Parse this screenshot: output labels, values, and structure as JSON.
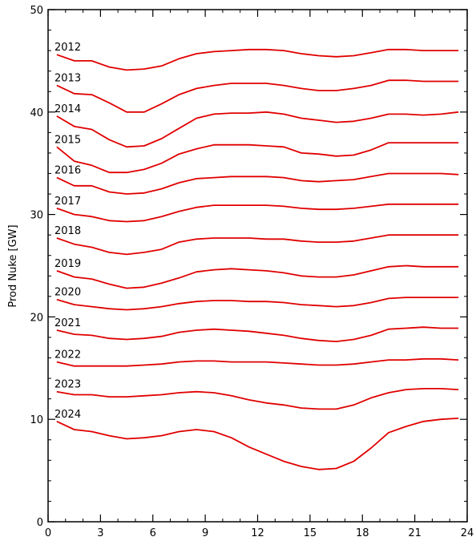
{
  "chart_data": {
    "type": "line",
    "title": "",
    "xlabel": "",
    "ylabel": "Prod Nuke [GW]",
    "xlim": [
      0,
      24
    ],
    "ylim": [
      0,
      50
    ],
    "xticks": [
      0,
      3,
      6,
      9,
      12,
      15,
      18,
      21,
      24
    ],
    "yticks": [
      0,
      10,
      20,
      30,
      40,
      50
    ],
    "grid": false,
    "line_color": "#e00000",
    "x": [
      0.5,
      1.5,
      2.5,
      3.5,
      4.5,
      5.5,
      6.5,
      7.5,
      8.5,
      9.5,
      10.5,
      11.5,
      12.5,
      13.5,
      14.5,
      15.5,
      16.5,
      17.5,
      18.5,
      19.5,
      20.5,
      21.5,
      22.5,
      23.5
    ],
    "series": [
      {
        "name": "2012",
        "values": [
          45.6,
          45.0,
          45.0,
          44.4,
          44.1,
          44.2,
          44.5,
          45.2,
          45.7,
          45.9,
          46.0,
          46.1,
          46.1,
          46.0,
          45.7,
          45.5,
          45.4,
          45.5,
          45.8,
          46.1,
          46.1,
          46.0,
          46.0,
          46.0
        ]
      },
      {
        "name": "2013",
        "values": [
          42.6,
          41.8,
          41.7,
          40.9,
          40.0,
          40.0,
          40.8,
          41.7,
          42.3,
          42.6,
          42.8,
          42.8,
          42.8,
          42.6,
          42.3,
          42.1,
          42.1,
          42.3,
          42.6,
          43.1,
          43.1,
          43.0,
          43.0,
          43.0
        ]
      },
      {
        "name": "2014",
        "values": [
          39.6,
          38.6,
          38.3,
          37.3,
          36.6,
          36.7,
          37.4,
          38.4,
          39.4,
          39.8,
          39.9,
          39.9,
          40.0,
          39.8,
          39.4,
          39.2,
          39.0,
          39.1,
          39.4,
          39.8,
          39.8,
          39.7,
          39.8,
          40.0
        ]
      },
      {
        "name": "2015",
        "values": [
          36.6,
          35.2,
          34.8,
          34.1,
          34.1,
          34.4,
          35.0,
          35.9,
          36.4,
          36.8,
          36.8,
          36.8,
          36.7,
          36.6,
          36.0,
          35.9,
          35.7,
          35.8,
          36.3,
          37.0,
          37.0,
          37.0,
          37.0,
          37.0
        ]
      },
      {
        "name": "2016",
        "values": [
          33.6,
          32.8,
          32.8,
          32.2,
          32.0,
          32.1,
          32.5,
          33.1,
          33.5,
          33.6,
          33.7,
          33.7,
          33.7,
          33.6,
          33.3,
          33.2,
          33.3,
          33.4,
          33.7,
          34.0,
          34.0,
          34.0,
          34.0,
          33.9
        ]
      },
      {
        "name": "2017",
        "values": [
          30.6,
          30.0,
          29.8,
          29.4,
          29.3,
          29.4,
          29.8,
          30.3,
          30.7,
          30.9,
          30.9,
          30.9,
          30.9,
          30.8,
          30.6,
          30.5,
          30.5,
          30.6,
          30.8,
          31.0,
          31.0,
          31.0,
          31.0,
          31.0
        ]
      },
      {
        "name": "2018",
        "values": [
          27.7,
          27.1,
          26.8,
          26.3,
          26.1,
          26.3,
          26.6,
          27.3,
          27.6,
          27.7,
          27.7,
          27.7,
          27.6,
          27.6,
          27.4,
          27.3,
          27.3,
          27.4,
          27.7,
          28.0,
          28.0,
          28.0,
          28.0,
          28.0
        ]
      },
      {
        "name": "2019",
        "values": [
          24.5,
          23.9,
          23.7,
          23.2,
          22.8,
          22.9,
          23.3,
          23.8,
          24.4,
          24.6,
          24.7,
          24.6,
          24.5,
          24.3,
          24.0,
          23.9,
          23.9,
          24.1,
          24.5,
          24.9,
          25.0,
          24.9,
          24.9,
          24.9
        ]
      },
      {
        "name": "2020",
        "values": [
          21.7,
          21.2,
          21.0,
          20.8,
          20.7,
          20.8,
          21.0,
          21.3,
          21.5,
          21.6,
          21.6,
          21.5,
          21.5,
          21.4,
          21.2,
          21.1,
          21.0,
          21.1,
          21.4,
          21.8,
          21.9,
          21.9,
          21.9,
          21.9
        ]
      },
      {
        "name": "2021",
        "values": [
          18.7,
          18.3,
          18.2,
          17.9,
          17.8,
          17.9,
          18.1,
          18.5,
          18.7,
          18.8,
          18.7,
          18.6,
          18.4,
          18.2,
          17.9,
          17.7,
          17.6,
          17.8,
          18.2,
          18.8,
          18.9,
          19.0,
          18.9,
          18.9
        ]
      },
      {
        "name": "2022",
        "values": [
          15.6,
          15.2,
          15.2,
          15.2,
          15.2,
          15.3,
          15.4,
          15.6,
          15.7,
          15.7,
          15.6,
          15.6,
          15.6,
          15.5,
          15.4,
          15.3,
          15.3,
          15.4,
          15.6,
          15.8,
          15.8,
          15.9,
          15.9,
          15.8
        ]
      },
      {
        "name": "2023",
        "values": [
          12.7,
          12.4,
          12.4,
          12.2,
          12.2,
          12.3,
          12.4,
          12.6,
          12.7,
          12.6,
          12.3,
          11.9,
          11.6,
          11.4,
          11.1,
          11.0,
          11.0,
          11.4,
          12.1,
          12.6,
          12.9,
          13.0,
          13.0,
          12.9
        ]
      },
      {
        "name": "2024",
        "values": [
          9.8,
          9.0,
          8.8,
          8.4,
          8.1,
          8.2,
          8.4,
          8.8,
          9.0,
          8.8,
          8.2,
          7.3,
          6.6,
          5.9,
          5.4,
          5.1,
          5.2,
          5.9,
          7.2,
          8.7,
          9.3,
          9.8,
          10.0,
          10.1
        ]
      }
    ]
  }
}
